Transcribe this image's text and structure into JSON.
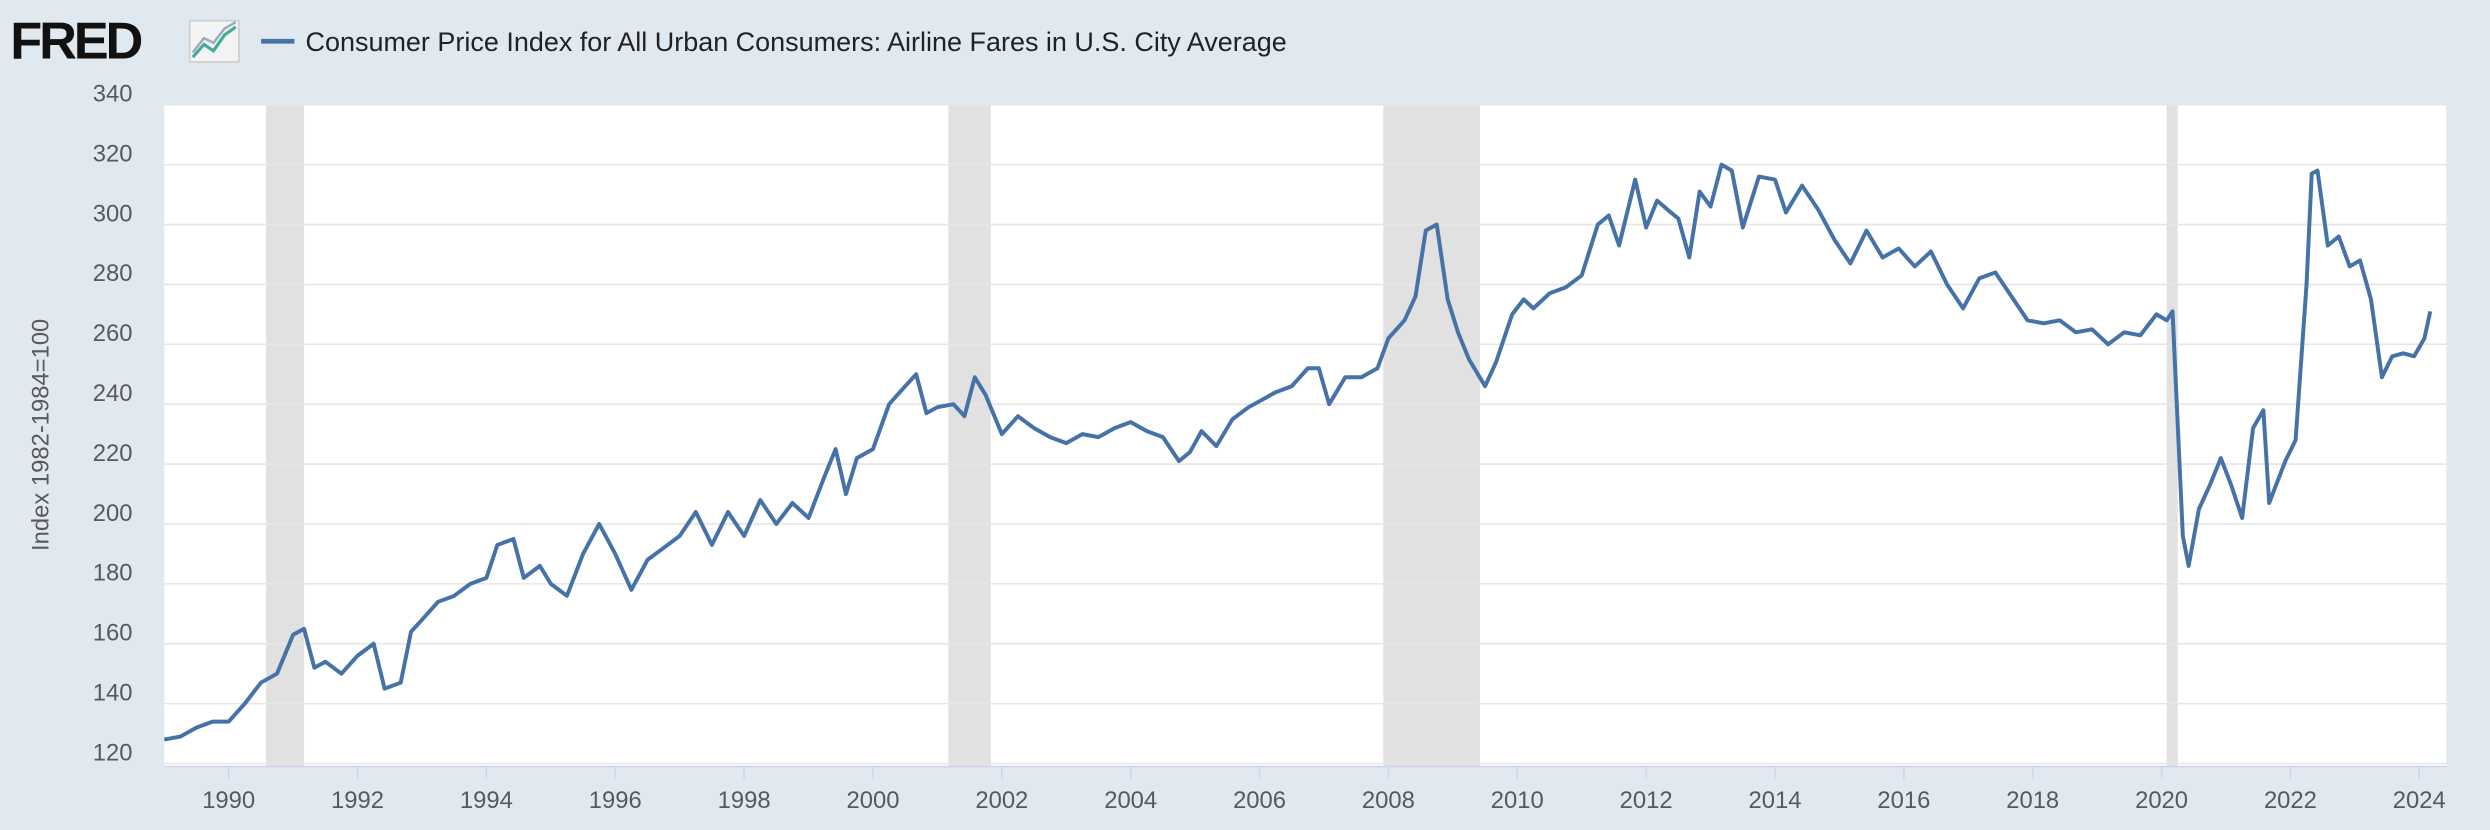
{
  "brand": "FRED",
  "chart_data": {
    "type": "line",
    "title": "Consumer Price Index for All Urban Consumers: Airline Fares in U.S. City Average",
    "y_label": "Index 1982-1984=100",
    "xlim": [
      1989,
      2024.42
    ],
    "xticks": [
      1990,
      1992,
      1994,
      1996,
      1998,
      2000,
      2002,
      2004,
      2006,
      2008,
      2010,
      2012,
      2014,
      2016,
      2018,
      2020,
      2022,
      2024
    ],
    "ylim": [
      119,
      340
    ],
    "yticks": [
      120,
      140,
      160,
      180,
      200,
      220,
      240,
      260,
      280,
      300,
      320,
      340
    ],
    "grid": true,
    "recessions": [
      [
        1990.58,
        1991.17
      ],
      [
        2001.17,
        2001.83
      ],
      [
        2007.92,
        2009.42
      ],
      [
        2020.08,
        2020.25
      ]
    ],
    "x": [
      1989.0,
      1989.25,
      1989.5,
      1989.75,
      1990.0,
      1990.25,
      1990.5,
      1990.75,
      1991.0,
      1991.17,
      1991.33,
      1991.5,
      1991.75,
      1992.0,
      1992.25,
      1992.42,
      1992.67,
      1992.83,
      1993.0,
      1993.25,
      1993.5,
      1993.75,
      1994.0,
      1994.17,
      1994.42,
      1994.58,
      1994.83,
      1995.0,
      1995.25,
      1995.5,
      1995.75,
      1996.0,
      1996.25,
      1996.5,
      1996.75,
      1997.0,
      1997.25,
      1997.5,
      1997.75,
      1998.0,
      1998.25,
      1998.5,
      1998.75,
      1999.0,
      1999.25,
      1999.42,
      1999.58,
      1999.75,
      2000.0,
      2000.25,
      2000.5,
      2000.67,
      2000.83,
      2001.0,
      2001.25,
      2001.42,
      2001.58,
      2001.75,
      2002.0,
      2002.25,
      2002.5,
      2002.75,
      2003.0,
      2003.25,
      2003.5,
      2003.75,
      2004.0,
      2004.25,
      2004.5,
      2004.75,
      2004.92,
      2005.1,
      2005.33,
      2005.58,
      2005.83,
      2006.0,
      2006.25,
      2006.5,
      2006.75,
      2006.92,
      2007.08,
      2007.33,
      2007.58,
      2007.83,
      2008.0,
      2008.25,
      2008.42,
      2008.58,
      2008.75,
      2008.92,
      2009.08,
      2009.25,
      2009.5,
      2009.67,
      2009.92,
      2010.1,
      2010.25,
      2010.5,
      2010.75,
      2011.0,
      2011.25,
      2011.42,
      2011.58,
      2011.83,
      2012.0,
      2012.17,
      2012.33,
      2012.5,
      2012.67,
      2012.83,
      2013.0,
      2013.17,
      2013.33,
      2013.5,
      2013.75,
      2014.0,
      2014.17,
      2014.42,
      2014.67,
      2014.92,
      2015.17,
      2015.42,
      2015.67,
      2015.92,
      2016.17,
      2016.42,
      2016.67,
      2016.92,
      2017.17,
      2017.42,
      2017.67,
      2017.92,
      2018.17,
      2018.42,
      2018.67,
      2018.92,
      2019.17,
      2019.42,
      2019.67,
      2019.92,
      2020.08,
      2020.17,
      2020.33,
      2020.42,
      2020.58,
      2020.75,
      2020.92,
      2021.08,
      2021.25,
      2021.42,
      2021.58,
      2021.67,
      2021.92,
      2022.08,
      2022.25,
      2022.33,
      2022.42,
      2022.58,
      2022.75,
      2022.92,
      2023.08,
      2023.25,
      2023.42,
      2023.58,
      2023.75,
      2023.92,
      2024.08,
      2024.17
    ],
    "series": [
      {
        "name": "Consumer Price Index for All Urban Consumers: Airline Fares in U.S. City Average",
        "color": "#4572a7",
        "values": [
          128,
          129,
          132,
          134,
          134,
          140,
          147,
          150,
          163,
          165,
          152,
          154,
          150,
          156,
          160,
          145,
          147,
          164,
          168,
          174,
          176,
          180,
          182,
          193,
          195,
          182,
          186,
          180,
          176,
          190,
          200,
          190,
          178,
          188,
          192,
          196,
          204,
          193,
          204,
          196,
          208,
          200,
          207,
          202,
          216,
          225,
          210,
          222,
          225,
          240,
          246,
          250,
          237,
          239,
          240,
          236,
          249,
          243,
          230,
          236,
          232,
          229,
          227,
          230,
          229,
          232,
          234,
          231,
          229,
          221,
          224,
          231,
          226,
          235,
          239,
          241,
          244,
          246,
          252,
          252,
          240,
          249,
          249,
          252,
          262,
          268,
          276,
          298,
          300,
          275,
          264,
          255,
          246,
          254,
          270,
          275,
          272,
          277,
          279,
          283,
          300,
          303,
          293,
          315,
          299,
          308,
          305,
          302,
          289,
          311,
          306,
          320,
          318,
          299,
          316,
          315,
          304,
          313,
          305,
          295,
          287,
          298,
          289,
          292,
          286,
          291,
          280,
          272,
          282,
          284,
          276,
          268,
          267,
          268,
          264,
          265,
          260,
          264,
          263,
          270,
          268,
          271,
          196,
          186,
          205,
          213,
          222,
          213,
          202,
          232,
          238,
          207,
          221,
          228,
          280,
          317,
          318,
          293,
          296,
          286,
          288,
          275,
          249,
          256,
          257,
          256,
          262,
          271
        ]
      }
    ]
  }
}
